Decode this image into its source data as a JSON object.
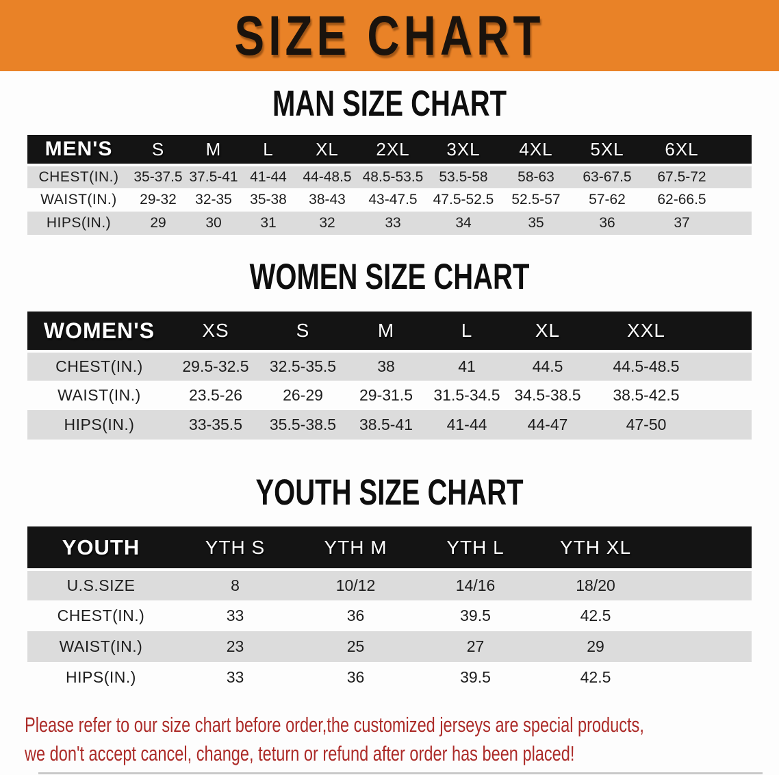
{
  "banner": {
    "title": "SIZE CHART"
  },
  "sections": [
    {
      "heading": "MAN SIZE CHART",
      "label": "MEN'S",
      "columns": [
        "S",
        "M",
        "L",
        "XL",
        "2XL",
        "3XL",
        "4XL",
        "5XL",
        "6XL"
      ],
      "rows": [
        {
          "label": "CHEST(IN.)",
          "values": [
            "35-37.5",
            "37.5-41",
            "41-44",
            "44-48.5",
            "48.5-53.5",
            "53.5-58",
            "58-63",
            "63-67.5",
            "67.5-72"
          ]
        },
        {
          "label": "WAIST(IN.)",
          "values": [
            "29-32",
            "32-35",
            "35-38",
            "38-43",
            "43-47.5",
            "47.5-52.5",
            "52.5-57",
            "57-62",
            "62-66.5"
          ]
        },
        {
          "label": "HIPS(IN.)",
          "values": [
            "29",
            "30",
            "31",
            "32",
            "33",
            "34",
            "35",
            "36",
            "37"
          ]
        }
      ]
    },
    {
      "heading": "WOMEN SIZE CHART",
      "label": "WOMEN'S",
      "columns": [
        "XS",
        "S",
        "M",
        "L",
        "XL",
        "XXL"
      ],
      "rows": [
        {
          "label": "CHEST(IN.)",
          "values": [
            "29.5-32.5",
            "32.5-35.5",
            "38",
            "41",
            "44.5",
            "44.5-48.5"
          ]
        },
        {
          "label": "WAIST(IN.)",
          "values": [
            "23.5-26",
            "26-29",
            "29-31.5",
            "31.5-34.5",
            "34.5-38.5",
            "38.5-42.5"
          ]
        },
        {
          "label": "HIPS(IN.)",
          "values": [
            "33-35.5",
            "35.5-38.5",
            "38.5-41",
            "41-44",
            "44-47",
            "47-50"
          ]
        }
      ]
    },
    {
      "heading": "YOUTH SIZE CHART",
      "label": "YOUTH",
      "columns": [
        "YTH S",
        "YTH M",
        "YTH L",
        "YTH XL"
      ],
      "rows": [
        {
          "label": "U.S.SIZE",
          "values": [
            "8",
            "10/12",
            "14/16",
            "18/20"
          ]
        },
        {
          "label": "CHEST(IN.)",
          "values": [
            "33",
            "36",
            "39.5",
            "42.5"
          ]
        },
        {
          "label": "WAIST(IN.)",
          "values": [
            "23",
            "25",
            "27",
            "29"
          ]
        },
        {
          "label": "HIPS(IN.)",
          "values": [
            "33",
            "36",
            "39.5",
            "42.5"
          ]
        }
      ]
    }
  ],
  "footer": {
    "line1": "Please refer to our size chart before order,the customized jerseys are special products,",
    "line2": "we don't accept cancel, change, teturn or refund after order has been placed!"
  },
  "colors": {
    "banner_bg": "#E98227",
    "header_bar": "#141414",
    "stripe": "#DCDCDC",
    "footer_text": "#AC2B28",
    "body_text": "#1D1D1D",
    "header_text": "#FFFFFF"
  }
}
